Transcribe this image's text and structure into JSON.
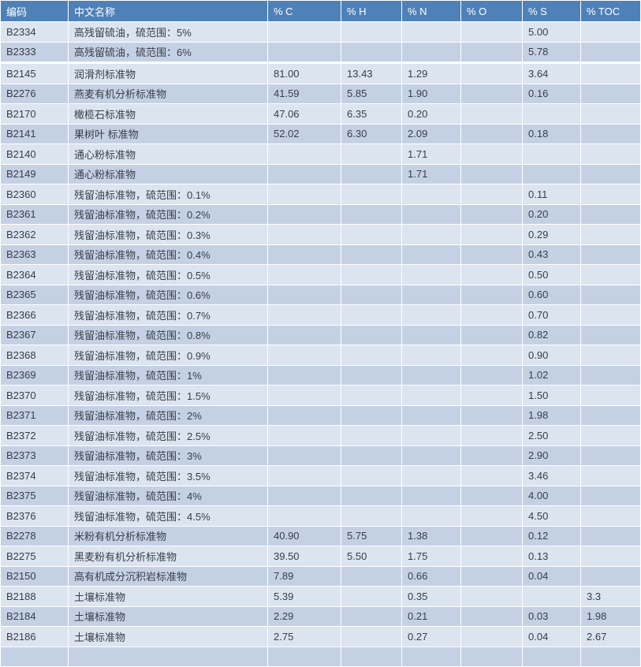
{
  "colors": {
    "header_bg": "#4e81b8",
    "header_text": "#ffffff",
    "row_light": "#dce4ef",
    "row_dark": "#c4d1e5",
    "cell_text": "#383e46",
    "grid": "#ffffff"
  },
  "table": {
    "columns": [
      "编码",
      "中文名称",
      "% C",
      "% H",
      "% N",
      "% O",
      "% S",
      "% TOC"
    ],
    "column_keys": [
      "code",
      "name",
      "c",
      "h",
      "n",
      "o",
      "s",
      "toc"
    ],
    "has_partial_bottom_row": true,
    "rows": [
      {
        "code": "B2334",
        "name": "高残留硫油，硫范围：5%",
        "c": "",
        "h": "",
        "n": "",
        "o": "",
        "s": "5.00",
        "toc": ""
      },
      {
        "code": "B2333",
        "name": "高残留硫油，硫范围：6%",
        "c": "",
        "h": "",
        "n": "",
        "o": "",
        "s": "5.78",
        "toc": "",
        "gap_after": true
      },
      {
        "code": "B2145",
        "name": "润滑剂标准物",
        "c": "81.00",
        "h": "13.43",
        "n": "1.29",
        "o": "",
        "s": "3.64",
        "toc": ""
      },
      {
        "code": "B2276",
        "name": "燕麦有机分析标准物",
        "c": "41.59",
        "h": "5.85",
        "n": "1.90",
        "o": "",
        "s": "0.16",
        "toc": ""
      },
      {
        "code": "B2170",
        "name": "橄榄石标准物",
        "c": "47.06",
        "h": "6.35",
        "n": "0.20",
        "o": "",
        "s": "",
        "toc": ""
      },
      {
        "code": "B2141",
        "name": "果树叶 标准物",
        "c": "52.02",
        "h": "6.30",
        "n": "2.09",
        "o": "",
        "s": "0.18",
        "toc": ""
      },
      {
        "code": "B2140",
        "name": "通心粉标准物",
        "c": "",
        "h": "",
        "n": "1.71",
        "o": "",
        "s": "",
        "toc": ""
      },
      {
        "code": "B2149",
        "name": "通心粉标准物",
        "c": "",
        "h": "",
        "n": "1.71",
        "o": "",
        "s": "",
        "toc": ""
      },
      {
        "code": "B2360",
        "name": "残留油标准物，硫范围：0.1%",
        "c": "",
        "h": "",
        "n": "",
        "o": "",
        "s": "0.11",
        "toc": ""
      },
      {
        "code": "B2361",
        "name": "残留油标准物，硫范围：0.2%",
        "c": "",
        "h": "",
        "n": "",
        "o": "",
        "s": "0.20",
        "toc": ""
      },
      {
        "code": "B2362",
        "name": "残留油标准物，硫范围：0.3%",
        "c": "",
        "h": "",
        "n": "",
        "o": "",
        "s": "0.29",
        "toc": ""
      },
      {
        "code": "B2363",
        "name": "残留油标准物，硫范围：0.4%",
        "c": "",
        "h": "",
        "n": "",
        "o": "",
        "s": "0.43",
        "toc": ""
      },
      {
        "code": "B2364",
        "name": "残留油标准物，硫范围：0.5%",
        "c": "",
        "h": "",
        "n": "",
        "o": "",
        "s": "0.50",
        "toc": ""
      },
      {
        "code": "B2365",
        "name": "残留油标准物，硫范围：0.6%",
        "c": "",
        "h": "",
        "n": "",
        "o": "",
        "s": "0.60",
        "toc": ""
      },
      {
        "code": "B2366",
        "name": "残留油标准物，硫范围：0.7%",
        "c": "",
        "h": "",
        "n": "",
        "o": "",
        "s": "0.70",
        "toc": ""
      },
      {
        "code": "B2367",
        "name": "残留油标准物，硫范围：0.8%",
        "c": "",
        "h": "",
        "n": "",
        "o": "",
        "s": "0.82",
        "toc": ""
      },
      {
        "code": "B2368",
        "name": "残留油标准物，硫范围：0.9%",
        "c": "",
        "h": "",
        "n": "",
        "o": "",
        "s": "0.90",
        "toc": ""
      },
      {
        "code": "B2369",
        "name": "残留油标准物，硫范围：1%",
        "c": "",
        "h": "",
        "n": "",
        "o": "",
        "s": "1.02",
        "toc": ""
      },
      {
        "code": "B2370",
        "name": "残留油标准物，硫范围：1.5%",
        "c": "",
        "h": "",
        "n": "",
        "o": "",
        "s": "1.50",
        "toc": ""
      },
      {
        "code": "B2371",
        "name": "残留油标准物，硫范围：2%",
        "c": "",
        "h": "",
        "n": "",
        "o": "",
        "s": "1.98",
        "toc": ""
      },
      {
        "code": "B2372",
        "name": "残留油标准物，硫范围：2.5%",
        "c": "",
        "h": "",
        "n": "",
        "o": "",
        "s": "2.50",
        "toc": ""
      },
      {
        "code": "B2373",
        "name": "残留油标准物，硫范围：3%",
        "c": "",
        "h": "",
        "n": "",
        "o": "",
        "s": "2.90",
        "toc": ""
      },
      {
        "code": "B2374",
        "name": "残留油标准物，硫范围：3.5%",
        "c": "",
        "h": "",
        "n": "",
        "o": "",
        "s": "3.46",
        "toc": ""
      },
      {
        "code": "B2375",
        "name": "残留油标准物，硫范围：4%",
        "c": "",
        "h": "",
        "n": "",
        "o": "",
        "s": "4.00",
        "toc": ""
      },
      {
        "code": "B2376",
        "name": "残留油标准物，硫范围：4.5%",
        "c": "",
        "h": "",
        "n": "",
        "o": "",
        "s": "4.50",
        "toc": ""
      },
      {
        "code": "B2278",
        "name": "米粉有机分析标准物",
        "c": "40.90",
        "h": "5.75",
        "n": "1.38",
        "o": "",
        "s": "0.12",
        "toc": ""
      },
      {
        "code": "B2275",
        "name": "黑麦粉有机分析标准物",
        "c": "39.50",
        "h": "5.50",
        "n": "1.75",
        "o": "",
        "s": "0.13",
        "toc": ""
      },
      {
        "code": "B2150",
        "name": "高有机成分沉积岩标准物",
        "c": "7.89",
        "h": "",
        "n": "0.66",
        "o": "",
        "s": "0.04",
        "toc": ""
      },
      {
        "code": "B2188",
        "name": "土壤标准物",
        "c": "5.39",
        "h": "",
        "n": "0.35",
        "o": "",
        "s": "",
        "toc": "3.3"
      },
      {
        "code": "B2184",
        "name": "土壤标准物",
        "c": "2.29",
        "h": "",
        "n": "0.21",
        "o": "",
        "s": "0.03",
        "toc": "1.98"
      },
      {
        "code": "B2186",
        "name": "土壤标准物",
        "c": "2.75",
        "h": "",
        "n": "0.27",
        "o": "",
        "s": "0.04",
        "toc": "2.67"
      }
    ]
  }
}
